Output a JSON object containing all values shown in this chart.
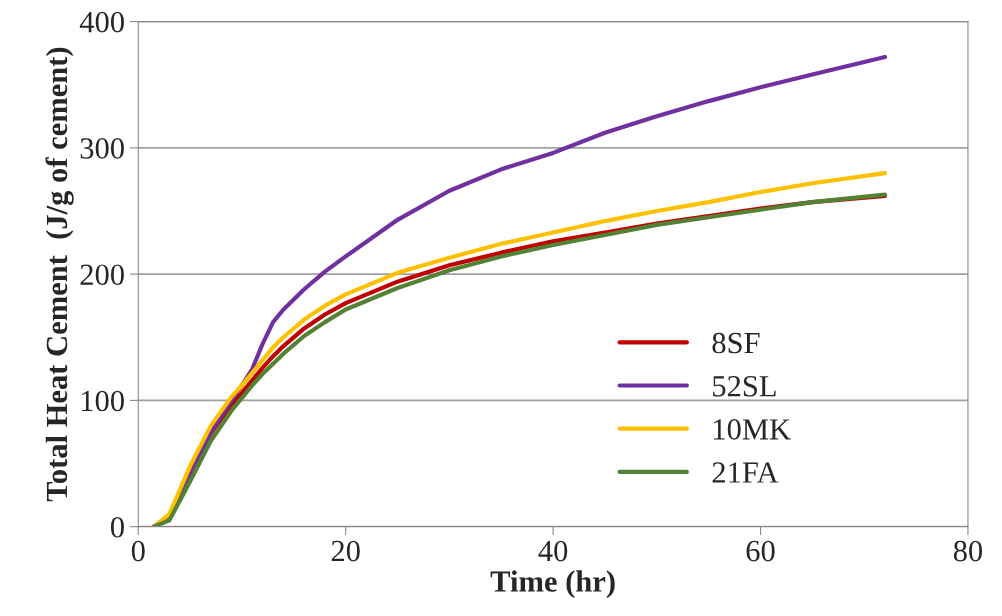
{
  "chart_data": {
    "type": "line",
    "xlabel": "Time (hr)",
    "ylabel": "Total Heat Cement  (J/g of cement)",
    "x": [
      1.5,
      3,
      5,
      7,
      9,
      10,
      11,
      12,
      13,
      14,
      16,
      18,
      20,
      25,
      30,
      35,
      40,
      45,
      50,
      55,
      60,
      65,
      72
    ],
    "series": [
      {
        "name": "8SF",
        "color": "#c00000",
        "values": [
          0,
          7,
          42,
          74,
          97,
          106,
          116,
          126,
          135,
          143,
          157,
          168,
          177,
          194,
          207,
          217,
          226,
          233,
          240,
          246,
          252,
          257,
          262
        ]
      },
      {
        "name": "52SL",
        "color": "#7030a0",
        "values": [
          0,
          8,
          40,
          75,
          100,
          112,
          125,
          145,
          162,
          172,
          188,
          202,
          214,
          243,
          266,
          283,
          296,
          312,
          325,
          337,
          348,
          358,
          372
        ]
      },
      {
        "name": "10MK",
        "color": "#ffc000",
        "values": [
          0,
          10,
          48,
          80,
          103,
          112,
          122,
          132,
          142,
          150,
          164,
          175,
          184,
          201,
          213,
          224,
          233,
          242,
          250,
          257,
          265,
          272,
          280
        ]
      },
      {
        "name": "21FA",
        "color": "#548235",
        "values": [
          0,
          5,
          36,
          68,
          92,
          102,
          112,
          121,
          129,
          137,
          151,
          162,
          172,
          189,
          203,
          214,
          223,
          231,
          239,
          245,
          251,
          257,
          263
        ]
      }
    ],
    "xlim": [
      0,
      80
    ],
    "xticks": [
      0,
      20,
      40,
      60,
      80
    ],
    "ylim": [
      0,
      400
    ],
    "yticks": [
      0,
      100,
      200,
      300,
      400
    ],
    "grid": "y",
    "legend": "bottom right",
    "marker": "none",
    "line_style": "solid"
  }
}
